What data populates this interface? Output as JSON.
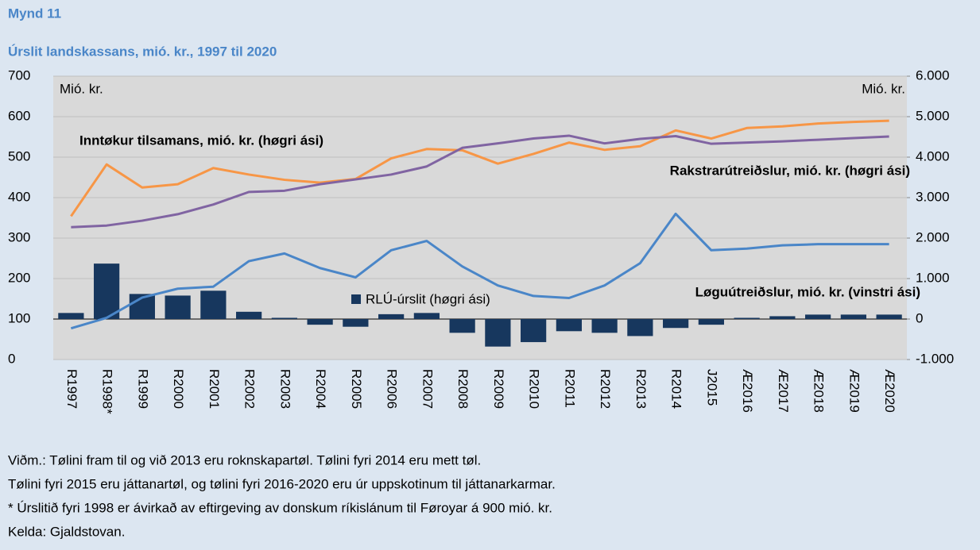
{
  "chart_data": {
    "type": "bar-line",
    "figure_label": "Mynd 11",
    "title": "Úrslit landskassans, mió. kr., 1997 til 2020",
    "y_axis_label": "Mió. kr.",
    "y2_axis_label": "Mió. kr.",
    "categories": [
      "R1997",
      "R1998*",
      "R1999",
      "R2000",
      "R2001",
      "R2002",
      "R2003",
      "R2004",
      "R2005",
      "R2006",
      "R2007",
      "R2008",
      "R2009",
      "R2010",
      "R2011",
      "R2012",
      "R2013",
      "R2014",
      "J2015",
      "Æ2016",
      "Æ2017",
      "Æ2018",
      "Æ2019",
      "Æ2020"
    ],
    "series": [
      {
        "name": "RLÚ-úrslit (høgri ási)",
        "type": "bar",
        "axis": "y2",
        "color": "#17375e",
        "values": [
          150,
          1370,
          620,
          580,
          700,
          180,
          30,
          -140,
          -190,
          120,
          150,
          -340,
          -680,
          -570,
          -300,
          -340,
          -420,
          -220,
          -140,
          30,
          70,
          110,
          110,
          110
        ]
      },
      {
        "name": "Inntøkur tilsamans, mió. kr. (høgri ási)",
        "type": "line",
        "axis": "y2",
        "color": "#f79646",
        "values": [
          2540,
          3820,
          3250,
          3330,
          3730,
          3570,
          3440,
          3370,
          3460,
          3970,
          4200,
          4170,
          3840,
          4080,
          4360,
          4180,
          4270,
          4660,
          4460,
          4720,
          4760,
          4830,
          4870,
          4900
        ]
      },
      {
        "name": "Rakstrarútreiðslur, mió. kr. (høgri ási)",
        "type": "line",
        "axis": "y2",
        "color": "#8064a2",
        "values": [
          2270,
          2310,
          2430,
          2590,
          2830,
          3140,
          3170,
          3330,
          3450,
          3570,
          3770,
          4230,
          4340,
          4460,
          4530,
          4340,
          4450,
          4520,
          4330,
          4360,
          4390,
          4430,
          4470,
          4510
        ]
      },
      {
        "name": "Løguútreiðslur, mió. kr. (vinstri ási)",
        "type": "line",
        "axis": "y",
        "color": "#4a86c8",
        "values": [
          77,
          103,
          153,
          175,
          180,
          243,
          262,
          226,
          203,
          270,
          293,
          230,
          183,
          157,
          152,
          183,
          238,
          360,
          270,
          274,
          282,
          285,
          285,
          285
        ]
      }
    ],
    "ylim": [
      0,
      700
    ],
    "yticks": [
      0,
      100,
      200,
      300,
      400,
      500,
      600,
      700
    ],
    "y2lim": [
      -1000,
      6000
    ],
    "y2ticks": [
      {
        "value": -1000,
        "label": "-1.000"
      },
      0,
      {
        "value": 1000,
        "label": "1.000"
      },
      {
        "value": 2000,
        "label": "2.000"
      },
      {
        "value": 3000,
        "label": "3.000"
      },
      {
        "value": 4000,
        "label": "4.000"
      },
      {
        "value": 5000,
        "label": "5.000"
      },
      {
        "value": 6000,
        "label": "6.000"
      }
    ],
    "notes": [
      "Viðm.: Tølini fram til og við 2013 eru roknskapartøl. Tølini fyri 2014 eru mett tøl.",
      "Tølini fyri 2015 eru játtanartøl, og tølini fyri 2016-2020 eru úr uppskotinum til játtanarkarmar.",
      "* Úrslitið fyri 1998 er ávirkað av eftirgeving av donskum ríkislánum til Føroyar á 900 mió. kr.",
      "Kelda: Gjaldstovan."
    ]
  }
}
